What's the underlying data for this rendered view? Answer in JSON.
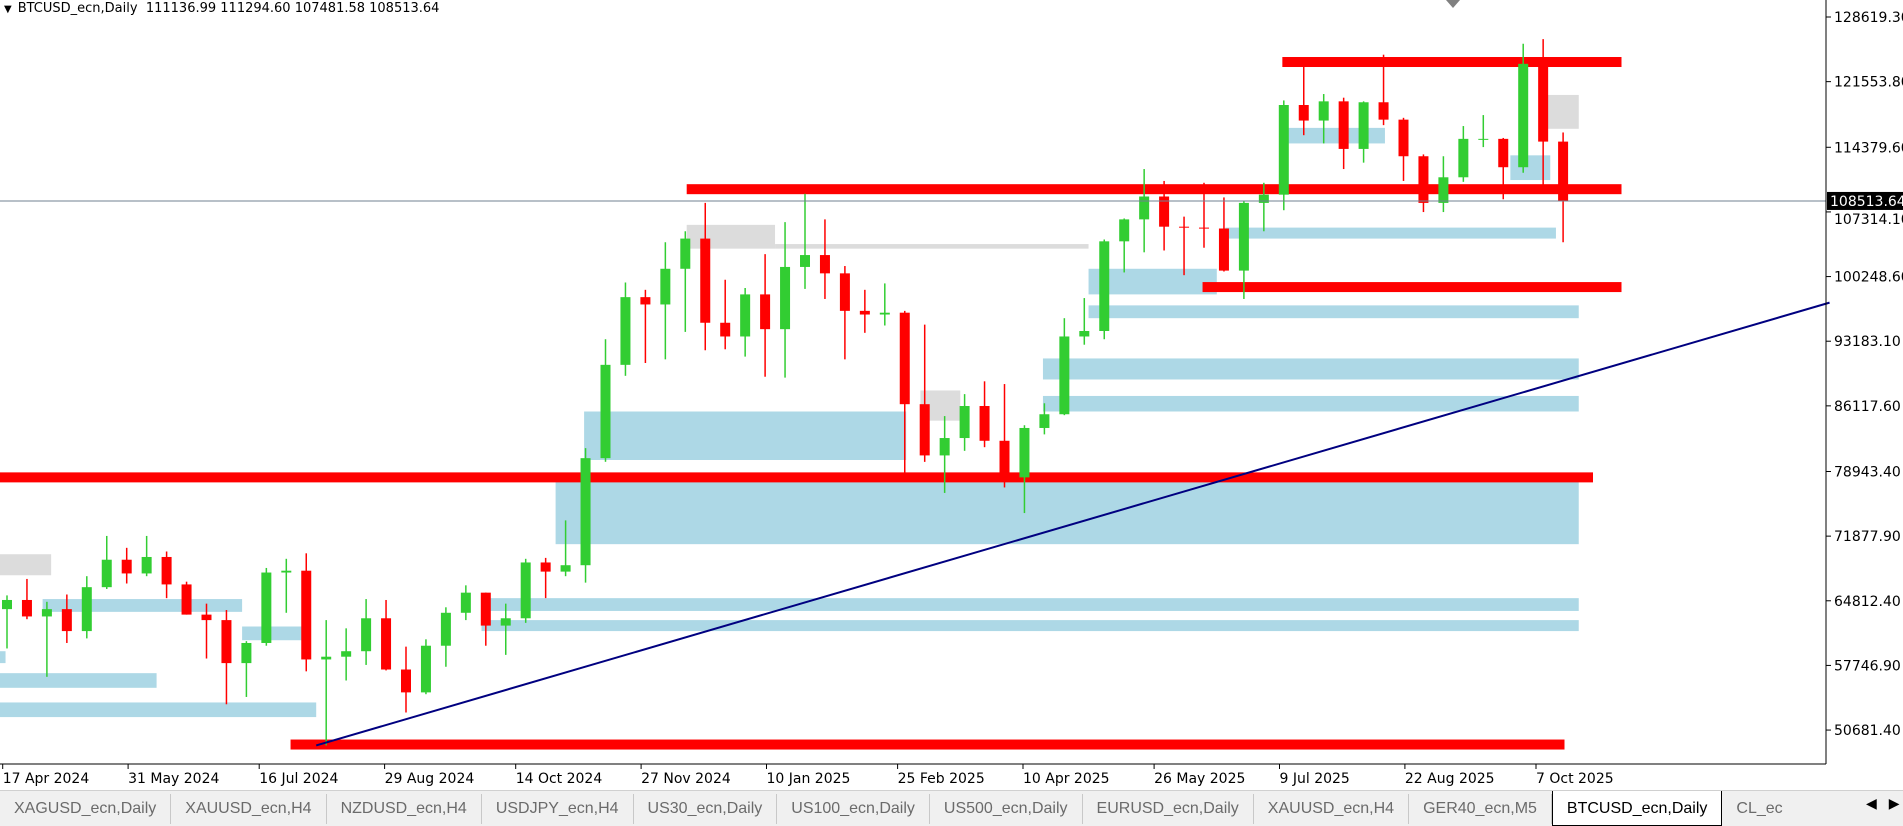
{
  "window": {
    "symbol_label": "BTCUSD_ecn,Daily",
    "ohlc": "111136.99 111294.60 107481.58 108513.64"
  },
  "tabs": [
    {
      "label": "XAGUSD_ecn,Daily"
    },
    {
      "label": "XAUUSD_ecn,H4"
    },
    {
      "label": "NZDUSD_ecn,H4"
    },
    {
      "label": "USDJPY_ecn,H4"
    },
    {
      "label": "US30_ecn,Daily"
    },
    {
      "label": "US100_ecn,Daily"
    },
    {
      "label": "US500_ecn,Daily"
    },
    {
      "label": "EURUSD_ecn,Daily"
    },
    {
      "label": "XAUUSD_ecn,H4"
    },
    {
      "label": "GER40_ecn,M5"
    },
    {
      "label": "BTCUSD_ecn,Daily",
      "active": true
    },
    {
      "label": "CL_ec"
    }
  ],
  "icons": {
    "menu": "triangle-down-icon",
    "scroll_left": "arrow-left-icon",
    "scroll_right": "arrow-right-icon"
  },
  "colors": {
    "bull": "#32cd32",
    "bear": "#ff0000",
    "zone": "#add8e6",
    "zone_grey": "#dcdcdc",
    "level": "#ff0000",
    "level_dark": "#b22222",
    "trendline": "#000080",
    "price_line": "#708090"
  },
  "chart_data": {
    "type": "candlestick",
    "title": "BTCUSD_ecn,Daily",
    "ylim": [
      47000,
      130000
    ],
    "y_ticks": [
      128619.3,
      121553.8,
      114379.6,
      107314.1,
      100248.6,
      93183.1,
      86117.6,
      78943.4,
      71877.9,
      64812.4,
      57746.9,
      50681.4
    ],
    "x_ticks": [
      "17 Apr 2024",
      "31 May 2024",
      "16 Jul 2024",
      "29 Aug 2024",
      "14 Oct 2024",
      "27 Nov 2024",
      "10 Jan 2025",
      "25 Feb 2025",
      "10 Apr 2025",
      "26 May 2025",
      "9 Jul 2025",
      "22 Aug 2025",
      "7 Oct 2025"
    ],
    "x_tick_dates": [
      "2024-04-17",
      "2024-05-31",
      "2024-07-16",
      "2024-08-29",
      "2024-10-14",
      "2024-11-27",
      "2025-01-10",
      "2025-02-25",
      "2025-04-10",
      "2025-05-26",
      "2025-07-09",
      "2025-08-22",
      "2025-10-07"
    ],
    "last_price": "108513.64",
    "candles_ohlc": [
      [
        "2024-04-01",
        69600,
        71000,
        64500,
        69400
      ],
      [
        "2024-04-08",
        69400,
        72700,
        60700,
        63900
      ],
      [
        "2024-04-15",
        63900,
        65400,
        59600,
        64900
      ],
      [
        "2024-04-22",
        64900,
        67200,
        62800,
        63100
      ],
      [
        "2024-04-29",
        63100,
        64700,
        56500,
        63900
      ],
      [
        "2024-05-06",
        63900,
        65500,
        60200,
        61500
      ],
      [
        "2024-05-13",
        61500,
        67500,
        60700,
        66300
      ],
      [
        "2024-05-20",
        66300,
        71900,
        66100,
        69300
      ],
      [
        "2024-05-27",
        69300,
        70600,
        66700,
        67800
      ],
      [
        "2024-06-03",
        67800,
        71900,
        67500,
        69600
      ],
      [
        "2024-06-10",
        69600,
        70200,
        65100,
        66600
      ],
      [
        "2024-06-17",
        66600,
        66900,
        63300,
        63300
      ],
      [
        "2024-06-24",
        63300,
        64500,
        58500,
        62700
      ],
      [
        "2024-07-01",
        62700,
        63800,
        53500,
        58000
      ],
      [
        "2024-07-08",
        58000,
        60400,
        54300,
        60200
      ],
      [
        "2024-07-15",
        60200,
        68400,
        59900,
        67900
      ],
      [
        "2024-07-22",
        67900,
        69400,
        63500,
        68100
      ],
      [
        "2024-07-29",
        68100,
        70000,
        57100,
        58400
      ],
      [
        "2024-08-05",
        58400,
        62700,
        49000,
        58700
      ],
      [
        "2024-08-12",
        58700,
        61800,
        56100,
        59300
      ],
      [
        "2024-08-19",
        59300,
        65000,
        57800,
        62900
      ],
      [
        "2024-08-26",
        62900,
        64900,
        57200,
        57300
      ],
      [
        "2024-09-02",
        57300,
        59800,
        52600,
        54800
      ],
      [
        "2024-09-09",
        54800,
        60600,
        54600,
        59900
      ],
      [
        "2024-09-16",
        59900,
        64100,
        57600,
        63500
      ],
      [
        "2024-09-23",
        63500,
        66500,
        62700,
        65700
      ],
      [
        "2024-09-30",
        65700,
        65700,
        59900,
        62100
      ],
      [
        "2024-10-07",
        62100,
        64500,
        58900,
        62900
      ],
      [
        "2024-10-14",
        62900,
        69400,
        62400,
        69000
      ],
      [
        "2024-10-21",
        69000,
        69500,
        65100,
        68000
      ],
      [
        "2024-10-28",
        68000,
        73600,
        67500,
        68700
      ],
      [
        "2024-11-04",
        68700,
        81500,
        66800,
        80400
      ],
      [
        "2024-11-11",
        80400,
        93400,
        80000,
        90600
      ],
      [
        "2024-11-18",
        90600,
        99600,
        89400,
        98000
      ],
      [
        "2024-11-25",
        98000,
        98800,
        90800,
        97200
      ],
      [
        "2024-12-02",
        97200,
        104000,
        91200,
        101100
      ],
      [
        "2024-12-09",
        101100,
        105200,
        94200,
        104400
      ],
      [
        "2024-12-16",
        104400,
        108300,
        92200,
        95200
      ],
      [
        "2024-12-23",
        95200,
        99900,
        92300,
        93700
      ],
      [
        "2024-12-30",
        93700,
        99000,
        91500,
        98300
      ],
      [
        "2025-01-06",
        98300,
        102700,
        89300,
        94500
      ],
      [
        "2025-01-13",
        94500,
        106200,
        89200,
        101300
      ],
      [
        "2025-01-20",
        101300,
        109300,
        98900,
        102600
      ],
      [
        "2025-01-27",
        102600,
        106500,
        97800,
        100600
      ],
      [
        "2025-02-03",
        100600,
        101400,
        91200,
        96500
      ],
      [
        "2025-02-10",
        96500,
        98800,
        94100,
        96100
      ],
      [
        "2025-02-17",
        96100,
        99500,
        94900,
        96300
      ],
      [
        "2025-02-24",
        96300,
        96500,
        78200,
        86300
      ],
      [
        "2025-03-03",
        86300,
        95000,
        80000,
        80700
      ],
      [
        "2025-03-10",
        80700,
        85000,
        76600,
        82600
      ],
      [
        "2025-03-17",
        82600,
        87400,
        81200,
        86100
      ],
      [
        "2025-03-24",
        86100,
        88800,
        81600,
        82300
      ],
      [
        "2025-03-31",
        82300,
        88500,
        77200,
        78300
      ],
      [
        "2025-04-07",
        78300,
        84000,
        74400,
        83700
      ],
      [
        "2025-04-14",
        83700,
        86400,
        83000,
        85200
      ],
      [
        "2025-04-21",
        85200,
        95700,
        85100,
        93700
      ],
      [
        "2025-04-28",
        93700,
        97900,
        92800,
        94300
      ],
      [
        "2025-05-05",
        94300,
        104300,
        93400,
        104100
      ],
      [
        "2025-05-12",
        104100,
        106600,
        100700,
        106500
      ],
      [
        "2025-05-19",
        106500,
        112000,
        102900,
        109000
      ],
      [
        "2025-05-26",
        109000,
        110700,
        103100,
        105700
      ],
      [
        "2025-06-02",
        105700,
        106800,
        100400,
        105600
      ],
      [
        "2025-06-09",
        105600,
        110500,
        103400,
        105500
      ],
      [
        "2025-06-16",
        105500,
        108900,
        100800,
        100900
      ],
      [
        "2025-06-23",
        100900,
        108500,
        97800,
        108300
      ],
      [
        "2025-06-30",
        108300,
        110500,
        105200,
        109200
      ],
      [
        "2025-07-07",
        109200,
        119500,
        107500,
        119000
      ],
      [
        "2025-07-14",
        119000,
        123200,
        115700,
        117300
      ],
      [
        "2025-07-21",
        117300,
        120200,
        114800,
        119400
      ],
      [
        "2025-07-28",
        119400,
        119800,
        112000,
        114200
      ],
      [
        "2025-08-04",
        114200,
        119400,
        112700,
        119300
      ],
      [
        "2025-08-11",
        119300,
        124500,
        116800,
        117400
      ],
      [
        "2025-08-18",
        117400,
        117600,
        110700,
        113400
      ],
      [
        "2025-08-25",
        113400,
        113600,
        107300,
        108300
      ],
      [
        "2025-09-01",
        108300,
        113400,
        107300,
        111100
      ],
      [
        "2025-09-08",
        111100,
        116700,
        110600,
        115300
      ],
      [
        "2025-09-15",
        115300,
        117900,
        114400,
        115300
      ],
      [
        "2025-09-22",
        115300,
        115400,
        108700,
        112200
      ],
      [
        "2025-09-29",
        112200,
        125700,
        111600,
        123500
      ],
      [
        "2025-10-06",
        123500,
        126200,
        110000,
        115000
      ],
      [
        "2025-10-13",
        115000,
        116000,
        104000,
        108513.64
      ]
    ],
    "levels": [
      {
        "price": 123700,
        "from": "2025-07-10",
        "to": "2025-11-06",
        "color": "#ff0000"
      },
      {
        "price": 109800,
        "from": "2024-12-13",
        "to": "2025-11-06",
        "color": "#ff0000"
      },
      {
        "price": 99100,
        "from": "2025-06-12",
        "to": "2025-11-06",
        "color": "#ff0000"
      },
      {
        "price": 78300,
        "from": "2024-04-01",
        "to": "2025-10-27",
        "color": "#ff0000"
      },
      {
        "price": 49100,
        "from": "2024-07-27",
        "to": "2025-10-17",
        "color": "#ff0000"
      }
    ],
    "trendline": {
      "from": [
        "2024-08-05",
        49000
      ],
      "to": [
        "2026-01-18",
        97400
      ]
    },
    "zones": [
      {
        "top": 85500,
        "bottom": 80200,
        "from": "2024-11-07",
        "to": "2025-02-28",
        "color": "#add8e6"
      },
      {
        "top": 77800,
        "bottom": 71000,
        "from": "2024-10-28",
        "to": "2025-10-22",
        "color": "#add8e6"
      },
      {
        "top": 65100,
        "bottom": 63700,
        "from": "2024-10-02",
        "to": "2025-10-22",
        "color": "#add8e6"
      },
      {
        "top": 62700,
        "bottom": 61500,
        "from": "2024-10-02",
        "to": "2025-10-22",
        "color": "#add8e6"
      },
      {
        "top": 91300,
        "bottom": 89000,
        "from": "2025-04-17",
        "to": "2025-10-22",
        "color": "#add8e6"
      },
      {
        "top": 87200,
        "bottom": 85500,
        "from": "2025-04-17",
        "to": "2025-10-22",
        "color": "#add8e6"
      },
      {
        "top": 97100,
        "bottom": 95700,
        "from": "2025-05-03",
        "to": "2025-10-22",
        "color": "#add8e6"
      },
      {
        "top": 101100,
        "bottom": 98300,
        "from": "2025-05-03",
        "to": "2025-06-17",
        "color": "#add8e6"
      },
      {
        "top": 105600,
        "bottom": 104400,
        "from": "2025-06-20",
        "to": "2025-10-14",
        "color": "#add8e6"
      },
      {
        "top": 116500,
        "bottom": 114800,
        "from": "2025-07-10",
        "to": "2025-08-15",
        "color": "#add8e6"
      },
      {
        "top": 65000,
        "bottom": 63600,
        "from": "2024-05-01",
        "to": "2024-07-10",
        "color": "#add8e6"
      },
      {
        "top": 62000,
        "bottom": 60500,
        "from": "2024-07-10",
        "to": "2024-08-02",
        "color": "#add8e6"
      },
      {
        "top": 59300,
        "bottom": 58000,
        "from": "2024-04-01",
        "to": "2024-04-18",
        "color": "#add8e6"
      },
      {
        "top": 56900,
        "bottom": 55300,
        "from": "2024-04-01",
        "to": "2024-06-10",
        "color": "#add8e6"
      },
      {
        "top": 53700,
        "bottom": 52100,
        "from": "2024-04-01",
        "to": "2024-08-05",
        "color": "#add8e6"
      },
      {
        "top": 113500,
        "bottom": 110800,
        "from": "2025-09-28",
        "to": "2025-10-12",
        "color": "#add8e6"
      },
      {
        "top": 69900,
        "bottom": 67600,
        "from": "2024-04-01",
        "to": "2024-05-04",
        "color": "#dcdcdc"
      },
      {
        "top": 105900,
        "bottom": 103300,
        "from": "2024-12-13",
        "to": "2025-01-13",
        "color": "#dcdcdc"
      },
      {
        "top": 103800,
        "bottom": 103300,
        "from": "2025-01-13",
        "to": "2025-05-03",
        "color": "#dcdcdc"
      },
      {
        "top": 87800,
        "bottom": 84500,
        "from": "2025-03-05",
        "to": "2025-03-19",
        "color": "#dcdcdc"
      },
      {
        "top": 120100,
        "bottom": 116400,
        "from": "2025-10-10",
        "to": "2025-10-22",
        "color": "#dcdcdc"
      }
    ]
  }
}
